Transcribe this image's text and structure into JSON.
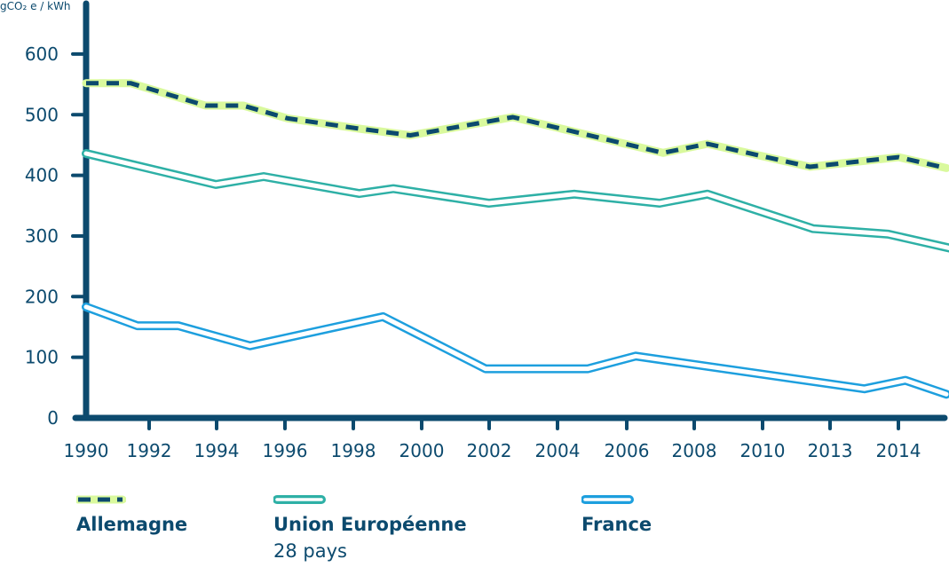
{
  "chart_data": {
    "type": "line",
    "unit_label": "gCO₂ e / kWh",
    "y_ticks": [
      "0",
      "100",
      "200",
      "300",
      "400",
      "500",
      "600"
    ],
    "x_ticks": [
      "1990",
      "1992",
      "1994",
      "1996",
      "1998",
      "2000",
      "2002",
      "2004",
      "2006",
      "2008",
      "2010",
      "2013",
      "2014"
    ],
    "ylim": [
      0,
      630
    ],
    "colors": {
      "axis": "#0c4a6e",
      "allemagne_stroke": "#0c4a6e",
      "allemagne_halo": "#d9f99d",
      "ue": "#2eb0a6",
      "france": "#1d9fde"
    },
    "series": [
      {
        "name": "Allemagne",
        "x": [
          1990,
          1991.3,
          1993.5,
          1994.6,
          1995.9,
          1998,
          1999.5,
          2002.5,
          2006.9,
          2008.2,
          2011.2,
          2013.8,
          2015.2
        ],
        "values": [
          552,
          552,
          515,
          515,
          494,
          477,
          466,
          496,
          437,
          452,
          414,
          430,
          412
        ]
      },
      {
        "name": "Union Européenne",
        "x": [
          1990,
          1993.8,
          1995.2,
          1998,
          1999,
          2001.8,
          2004.3,
          2006.8,
          2008.2,
          2011.3,
          2013.5,
          2015.3
        ],
        "values": [
          436,
          385,
          398,
          370,
          378,
          354,
          369,
          354,
          369,
          312,
          303,
          280
        ]
      },
      {
        "name": "France",
        "x": [
          1990,
          1991.5,
          1992.7,
          1994.8,
          1998.7,
          2001.7,
          2004.7,
          2006.1,
          2012.8,
          2014,
          2015.2
        ],
        "values": [
          183,
          152,
          152,
          119,
          167,
          81,
          81,
          102,
          48,
          62,
          39
        ]
      }
    ],
    "legend": [
      {
        "key": "allemagne",
        "label": "Allemagne",
        "sub": ""
      },
      {
        "key": "ue",
        "label": "Union Européenne",
        "sub": "28 pays"
      },
      {
        "key": "france",
        "label": "France",
        "sub": ""
      }
    ]
  }
}
